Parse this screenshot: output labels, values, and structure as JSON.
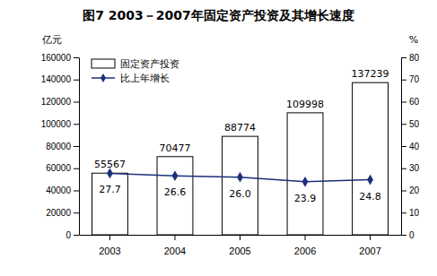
{
  "chart_data": {
    "type": "bar",
    "title": "图7  2003－2007年固定资产投资及其增长速度",
    "ylabel": "亿元",
    "y2label": "%",
    "categories": [
      "2003",
      "2004",
      "2005",
      "2006",
      "2007"
    ],
    "series": [
      {
        "name": "固定资产投资",
        "type": "bar",
        "color": "#ffffff",
        "values": [
          55567,
          70477,
          88774,
          109998,
          137239
        ]
      },
      {
        "name": "比上年增长",
        "type": "line",
        "axis": "y2",
        "color": "#1c2f7a",
        "marker": "diamond",
        "values": [
          27.7,
          26.6,
          26.0,
          23.9,
          24.8
        ],
        "value_labels": [
          "27.7",
          "26.6",
          "26.0",
          "23.9",
          "24.8"
        ]
      }
    ],
    "ylim": [
      0,
      160000
    ],
    "yticks": [
      0,
      20000,
      40000,
      60000,
      80000,
      100000,
      120000,
      140000,
      160000
    ],
    "y2lim": [
      0,
      80
    ],
    "y2ticks": [
      0,
      10,
      20,
      30,
      40,
      50,
      60,
      70,
      80
    ],
    "data_labels": true,
    "legend": "upper left",
    "grid": false
  }
}
